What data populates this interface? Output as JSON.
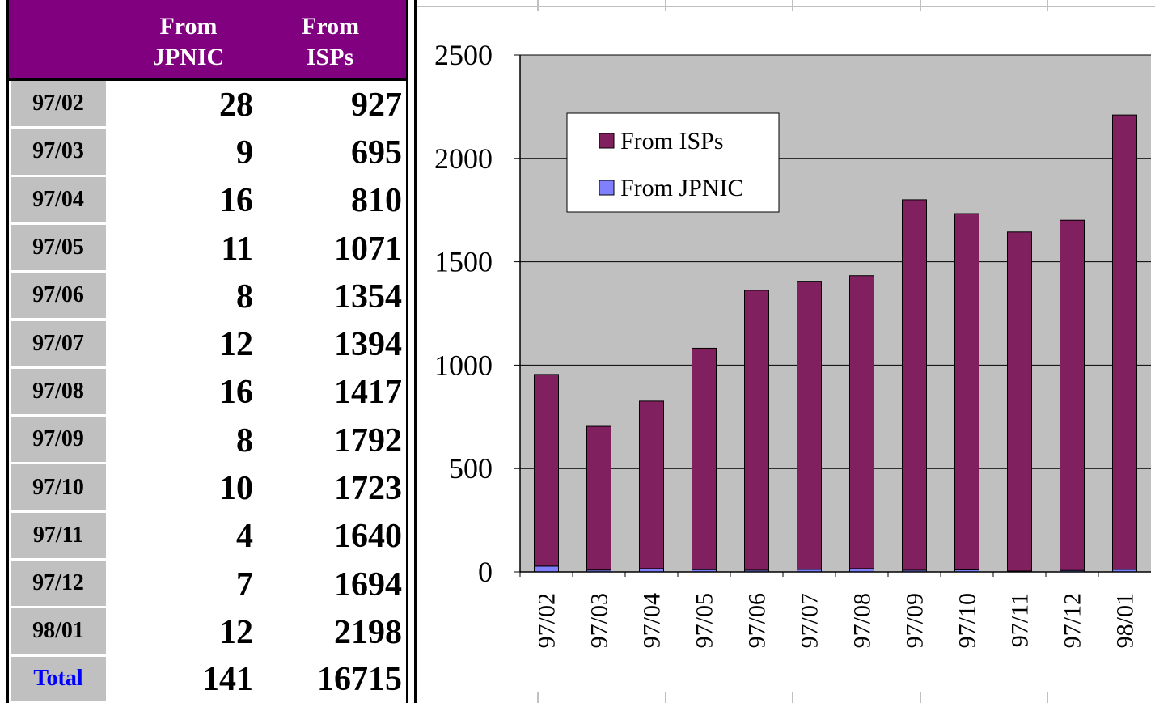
{
  "table": {
    "headers": [
      "From JPNIC",
      "From ISPs"
    ],
    "rows": [
      [
        "97/02",
        28,
        927
      ],
      [
        "97/03",
        9,
        695
      ],
      [
        "97/04",
        16,
        810
      ],
      [
        "97/05",
        11,
        1071
      ],
      [
        "97/06",
        8,
        1354
      ],
      [
        "97/07",
        12,
        1394
      ],
      [
        "97/08",
        16,
        1417
      ],
      [
        "97/09",
        8,
        1792
      ],
      [
        "97/10",
        10,
        1723
      ],
      [
        "97/11",
        4,
        1640
      ],
      [
        "97/12",
        7,
        1694
      ],
      [
        "98/01",
        12,
        2198
      ]
    ],
    "total": [
      "Total",
      141,
      16715
    ]
  },
  "chart_data": {
    "type": "stacked-bar",
    "categories": [
      "97/02",
      "97/03",
      "97/04",
      "97/05",
      "97/06",
      "97/07",
      "97/08",
      "97/09",
      "97/10",
      "97/11",
      "97/12",
      "98/01"
    ],
    "series": [
      {
        "name": "From JPNIC",
        "color": "#8080ff",
        "values": [
          28,
          9,
          16,
          11,
          8,
          12,
          16,
          8,
          10,
          4,
          7,
          12
        ]
      },
      {
        "name": "From ISPs",
        "color": "#80205f",
        "values": [
          927,
          695,
          810,
          1071,
          1354,
          1394,
          1417,
          1792,
          1723,
          1640,
          1694,
          2198
        ]
      }
    ],
    "ylim": [
      0,
      2500
    ],
    "yticks": [
      0,
      500,
      1000,
      1500,
      2000,
      2500
    ],
    "grid": true
  }
}
